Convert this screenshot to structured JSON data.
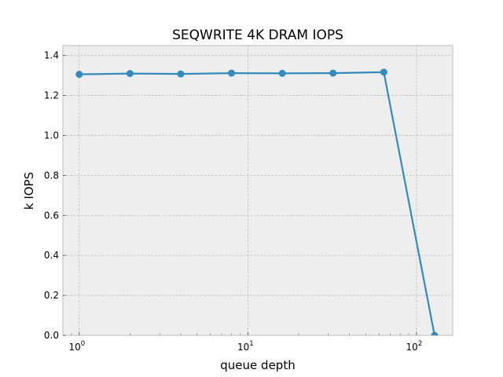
{
  "chart_data": {
    "type": "line",
    "title": "SEQWRITE 4K DRAM IOPS",
    "xlabel": "queue depth",
    "ylabel": "k IOPS",
    "xscale": "log",
    "xlim": [
      0.8,
      164
    ],
    "ylim": [
      0.0,
      1.45
    ],
    "x": [
      1,
      2,
      4,
      8,
      16,
      32,
      64,
      128
    ],
    "series": [
      {
        "name": "",
        "values": [
          1.306,
          1.31,
          1.308,
          1.312,
          1.311,
          1.312,
          1.317,
          0.0
        ]
      }
    ],
    "y_ticks": [
      0.0,
      0.2,
      0.4,
      0.6,
      0.8,
      1.0,
      1.2,
      1.4
    ],
    "y_tick_labels": [
      "0.0",
      "0.2",
      "0.4",
      "0.6",
      "0.8",
      "1.0",
      "1.2",
      "1.4"
    ],
    "x_major_ticks": [
      1,
      10,
      100
    ],
    "x_tick_labels": [
      {
        "base": "10",
        "exp": "0"
      },
      {
        "base": "10",
        "exp": "1"
      },
      {
        "base": "10",
        "exp": "2"
      }
    ],
    "grid": true,
    "colors": {
      "line": "#348abd",
      "plot_background": "#eeeeee",
      "grid": "#b2b2b2",
      "frame": "#bcbcbc"
    }
  }
}
